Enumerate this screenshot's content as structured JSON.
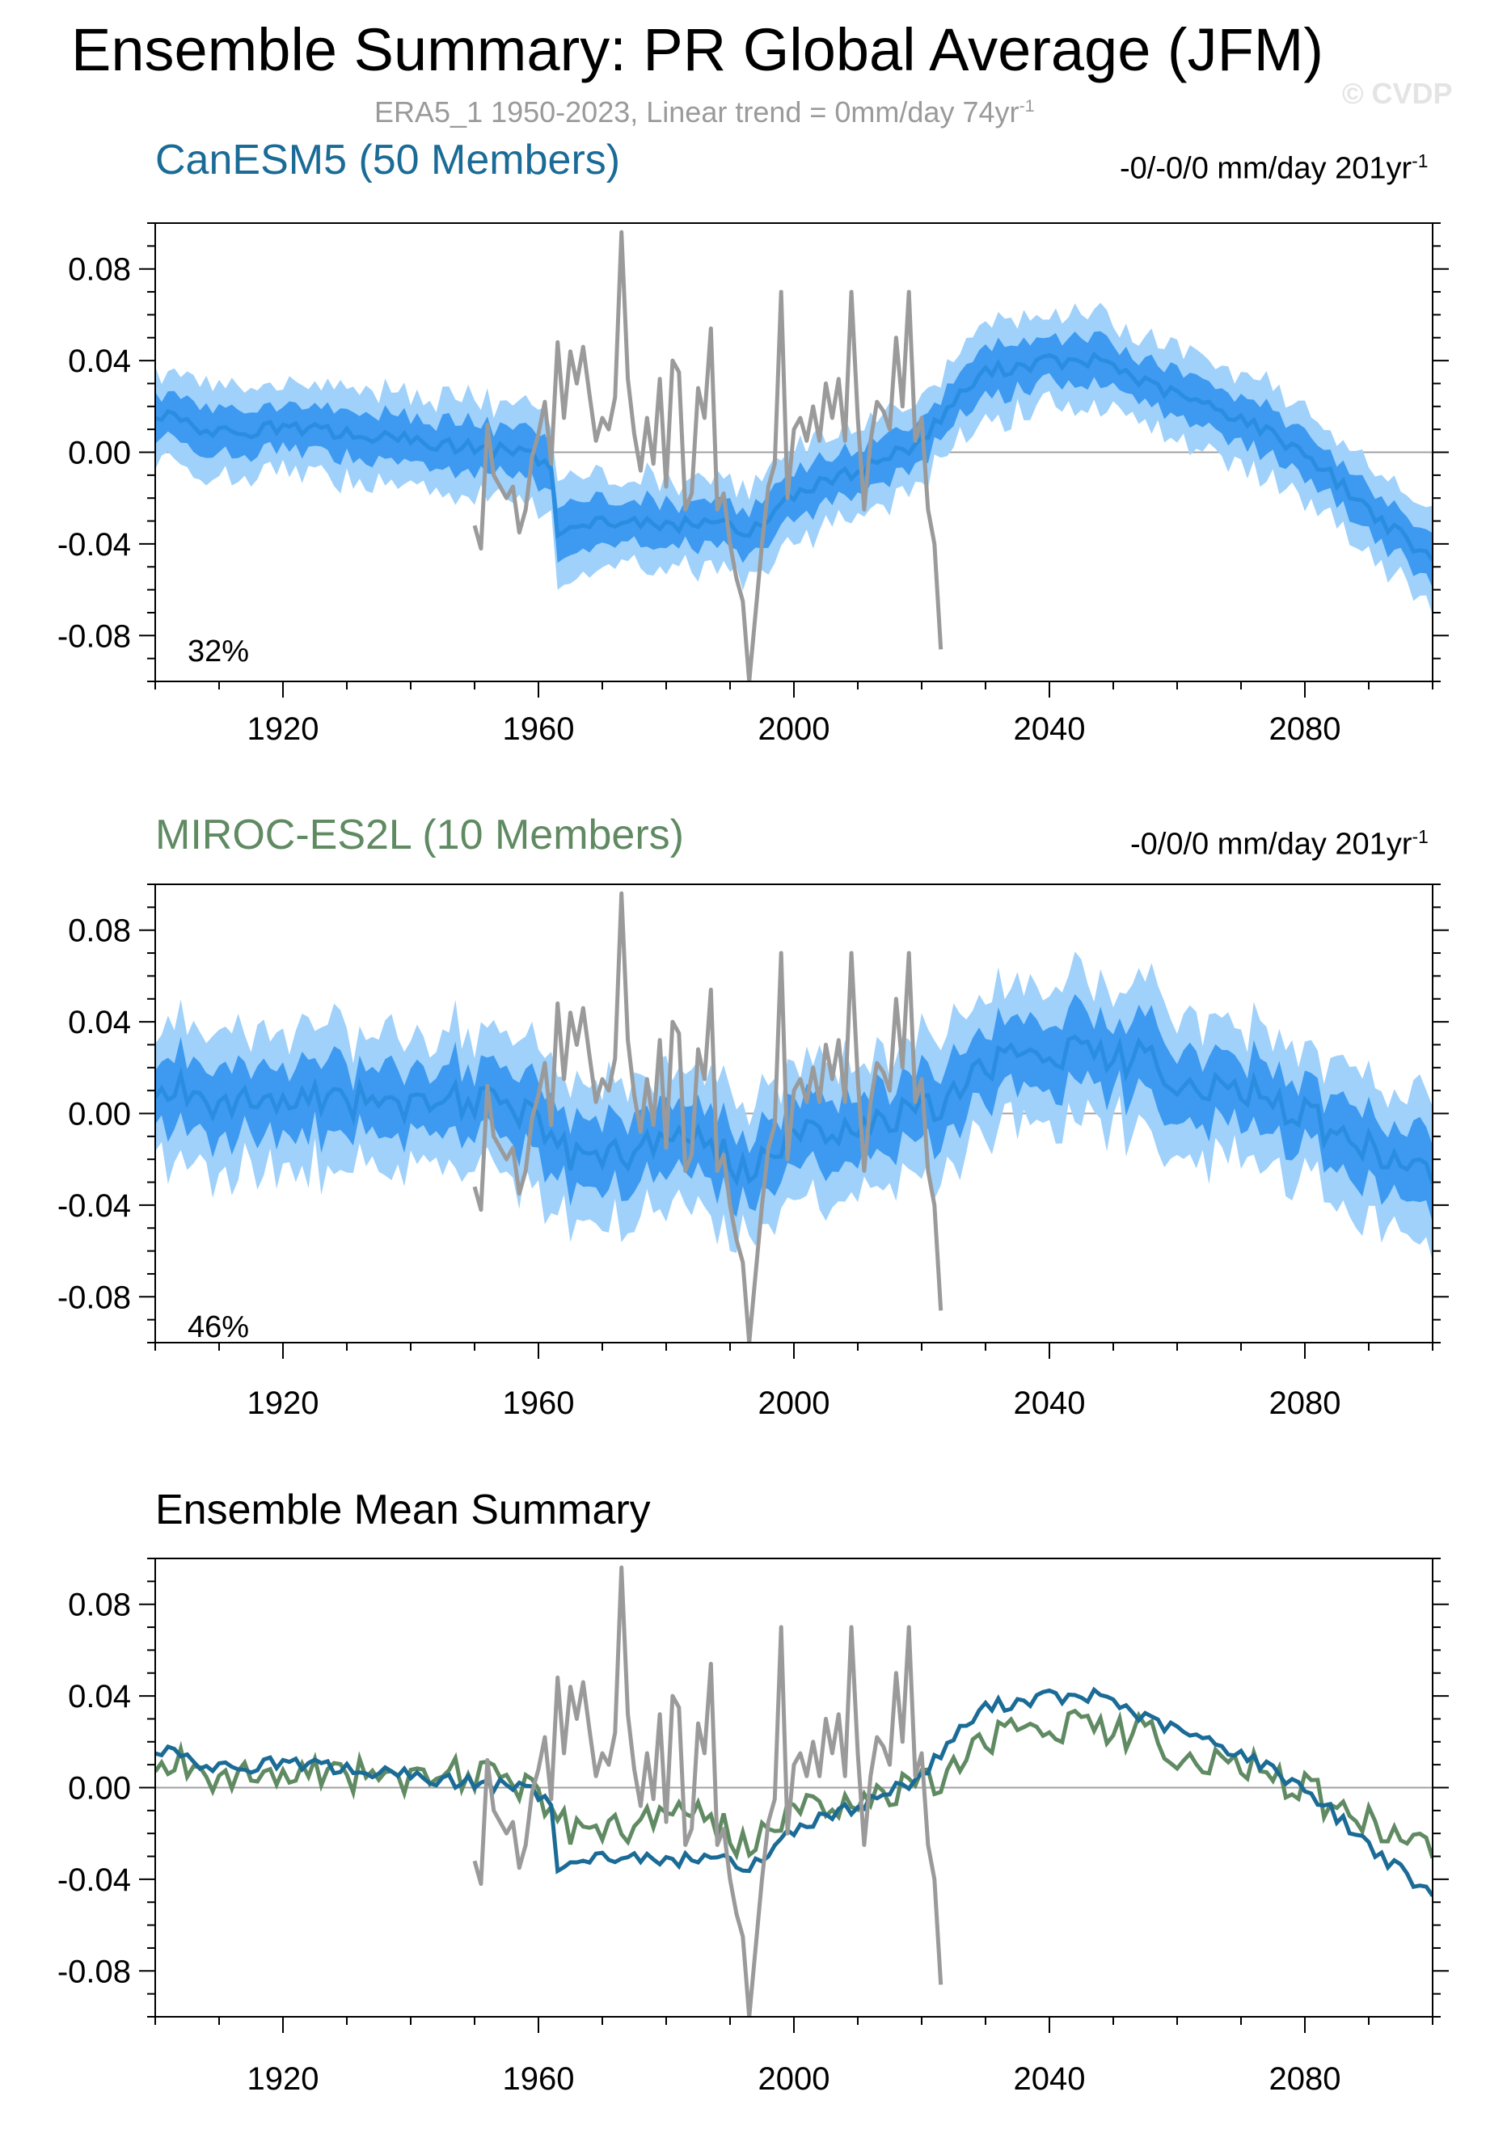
{
  "title": "Ensemble Summary: PR Global Average (JFM)",
  "obs_subtitle": {
    "text": "ERA5_1 1950-2023, Linear trend = 0mm/day 74yr",
    "sup": "-1"
  },
  "copyright": "© CVDP",
  "colors": {
    "canesm5": "#1a6b96",
    "miroc": "#5f8a62",
    "obs": "#9a9a9a",
    "spread_outer": "#9fd1fb",
    "spread_inner": "#3d9af0",
    "ensemble_mean_line": "#2a8de0",
    "copyright": "#e4e4e4"
  },
  "panels": [
    {
      "title": "CanESM5 (50 Members)",
      "trend": {
        "text": "-0/-0/0 mm/day 201yr",
        "sup": "-1"
      },
      "percent": "32%"
    },
    {
      "title": "MIROC-ES2L (10 Members)",
      "trend": {
        "text": "-0/0/0 mm/day 201yr",
        "sup": "-1"
      },
      "percent": "46%"
    },
    {
      "title": "Ensemble Mean Summary"
    }
  ],
  "chart_data": [
    {
      "type": "area",
      "title": "CanESM5 (50 Members)",
      "xlim": [
        1900,
        2100
      ],
      "ylim": [
        -0.1,
        0.1
      ],
      "xticks": [
        1920,
        1960,
        2000,
        2040,
        2080
      ],
      "xtick_labels": [
        "1920",
        "1960",
        "2000",
        "2040",
        "2080"
      ],
      "yticks": [
        -0.08,
        -0.04,
        0.0,
        0.04,
        0.08
      ],
      "ytick_labels": [
        "-0.08",
        "-0.04",
        "0.00",
        "0.04",
        "0.08"
      ],
      "ensemble_mean": {
        "x": [
          1900,
          1910,
          1920,
          1930,
          1940,
          1950,
          1955,
          1960,
          1962,
          1963,
          1965,
          1970,
          1980,
          1990,
          1993,
          1995,
          2000,
          2010,
          2020,
          2025,
          2030,
          2040,
          2045,
          2048,
          2055,
          2060,
          2070,
          2080,
          2090,
          2100
        ],
        "y": [
          0.017,
          0.008,
          0.011,
          0.008,
          0.005,
          0.002,
          0.001,
          -0.003,
          -0.008,
          -0.035,
          -0.03,
          -0.03,
          -0.032,
          -0.03,
          -0.037,
          -0.03,
          -0.018,
          -0.008,
          0.005,
          0.022,
          0.035,
          0.04,
          0.038,
          0.041,
          0.03,
          0.025,
          0.015,
          0.0,
          -0.025,
          -0.048
        ]
      },
      "spread_inner_halfwidth": 0.01,
      "spread_outer_halfwidth": 0.02,
      "observations": {
        "name": "ERA5_1",
        "x": [
          1950,
          1951,
          1952,
          1953,
          1954,
          1955,
          1956,
          1957,
          1958,
          1959,
          1960,
          1961,
          1962,
          1963,
          1964,
          1965,
          1966,
          1967,
          1968,
          1969,
          1970,
          1971,
          1972,
          1973,
          1974,
          1975,
          1976,
          1977,
          1978,
          1979,
          1980,
          1981,
          1982,
          1983,
          1984,
          1985,
          1986,
          1987,
          1988,
          1989,
          1990,
          1991,
          1992,
          1993,
          1994,
          1995,
          1996,
          1997,
          1998,
          1999,
          2000,
          2001,
          2002,
          2003,
          2004,
          2005,
          2006,
          2007,
          2008,
          2009,
          2010,
          2011,
          2012,
          2013,
          2014,
          2015,
          2016,
          2017,
          2018,
          2019,
          2020,
          2021,
          2022,
          2023
        ],
        "y": [
          -0.032,
          -0.042,
          0.012,
          -0.01,
          -0.015,
          -0.02,
          -0.015,
          -0.035,
          -0.025,
          -0.002,
          0.008,
          0.022,
          -0.005,
          0.048,
          0.015,
          0.044,
          0.03,
          0.046,
          0.025,
          0.005,
          0.015,
          0.01,
          0.024,
          0.096,
          0.032,
          0.008,
          -0.008,
          0.015,
          -0.005,
          0.032,
          -0.015,
          0.04,
          0.035,
          -0.025,
          -0.018,
          0.028,
          0.015,
          0.054,
          -0.025,
          -0.018,
          -0.04,
          -0.055,
          -0.065,
          -0.1,
          -0.07,
          -0.04,
          -0.015,
          -0.005,
          0.07,
          -0.02,
          0.01,
          0.015,
          0.005,
          0.02,
          0.005,
          0.03,
          0.015,
          0.032,
          0.005,
          0.07,
          0.015,
          -0.025,
          0.005,
          0.022,
          0.018,
          0.01,
          0.05,
          0.02,
          0.07,
          0.005,
          0.015,
          -0.025,
          -0.04,
          -0.086
        ]
      }
    },
    {
      "type": "area",
      "title": "MIROC-ES2L (10 Members)",
      "xlim": [
        1900,
        2100
      ],
      "ylim": [
        -0.1,
        0.1
      ],
      "xticks": [
        1920,
        1960,
        2000,
        2040,
        2080
      ],
      "xtick_labels": [
        "1920",
        "1960",
        "2000",
        "2040",
        "2080"
      ],
      "yticks": [
        -0.08,
        -0.04,
        0.0,
        0.04,
        0.08
      ],
      "ytick_labels": [
        "-0.08",
        "-0.04",
        "0.00",
        "0.04",
        "0.08"
      ],
      "ensemble_mean": {
        "x": [
          1900,
          1905,
          1910,
          1915,
          1920,
          1925,
          1930,
          1935,
          1940,
          1945,
          1950,
          1955,
          1960,
          1963,
          1965,
          1970,
          1975,
          1980,
          1985,
          1990,
          1993,
          1995,
          2000,
          2005,
          2010,
          2015,
          2020,
          2025,
          2030,
          2035,
          2040,
          2045,
          2050,
          2055,
          2060,
          2065,
          2070,
          2075,
          2080,
          2085,
          2090,
          2095,
          2100
        ],
        "y": [
          0.005,
          0.012,
          0.0,
          0.008,
          0.002,
          0.01,
          0.005,
          0.008,
          0.002,
          0.01,
          0.003,
          0.004,
          0.001,
          -0.015,
          -0.018,
          -0.02,
          -0.015,
          -0.012,
          -0.01,
          -0.02,
          -0.03,
          -0.015,
          -0.01,
          -0.005,
          -0.008,
          -0.002,
          0.0,
          0.01,
          0.02,
          0.028,
          0.025,
          0.03,
          0.022,
          0.028,
          0.015,
          0.008,
          0.012,
          0.005,
          0.0,
          -0.01,
          -0.015,
          -0.022,
          -0.028
        ]
      },
      "spread_inner_halfwidth": 0.015,
      "spread_outer_halfwidth": 0.03,
      "observations": {
        "name": "ERA5_1",
        "same_as_panel": 1
      }
    },
    {
      "type": "line",
      "title": "Ensemble Mean Summary",
      "xlim": [
        1900,
        2100
      ],
      "ylim": [
        -0.1,
        0.1
      ],
      "xticks": [
        1920,
        1960,
        2000,
        2040,
        2080
      ],
      "xtick_labels": [
        "1920",
        "1960",
        "2000",
        "2040",
        "2080"
      ],
      "yticks": [
        -0.08,
        -0.04,
        0.0,
        0.04,
        0.08
      ],
      "ytick_labels": [
        "-0.08",
        "-0.04",
        "0.00",
        "0.04",
        "0.08"
      ],
      "series": [
        {
          "name": "CanESM5",
          "color": "#1a6b96",
          "from_panel": 1
        },
        {
          "name": "MIROC-ES2L",
          "color": "#5f8a62",
          "from_panel": 2
        },
        {
          "name": "ERA5_1",
          "color": "#9a9a9a",
          "from_panel": 1,
          "observations": true
        }
      ]
    }
  ]
}
